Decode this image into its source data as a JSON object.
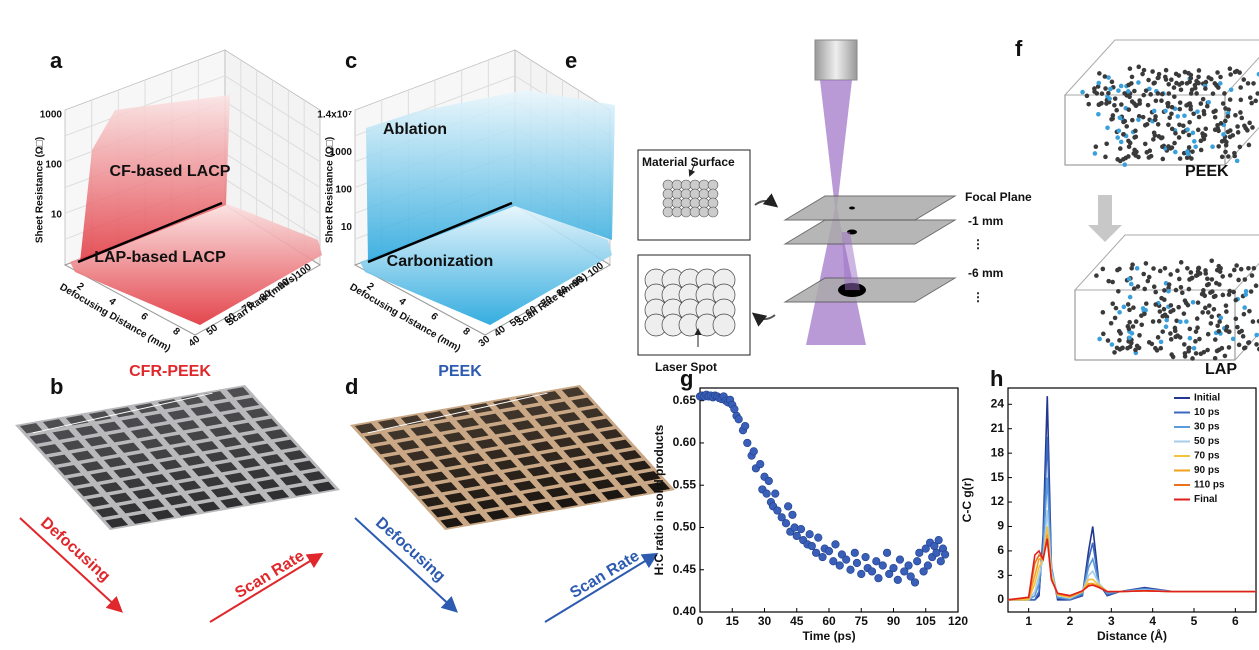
{
  "panel_labels": [
    "a",
    "b",
    "c",
    "d",
    "e",
    "f",
    "g",
    "h"
  ],
  "panel_a": {
    "z_label": "Sheet Resistance (Ω□)",
    "z_ticks": [
      "1000",
      "100",
      "10"
    ],
    "annotations": [
      "CF-based LACP",
      "LAP-based LACP"
    ],
    "x_label": "Defocusing Distance (mm)",
    "x_ticks": [
      "2",
      "4",
      "6",
      "8"
    ],
    "y_label": "Scan Rate (mm/s)",
    "y_ticks": [
      "40",
      "50",
      "60",
      "70",
      "80",
      "90",
      "100"
    ],
    "material": "CFR-PEEK"
  },
  "panel_b": {
    "arrows": [
      "Defocusing",
      "Scan Rate"
    ]
  },
  "panel_c": {
    "z_label": "Sheet Resistance (Ω□)",
    "z_ticks": [
      "1.4x10⁷",
      "1000",
      "100",
      "10"
    ],
    "annotations": [
      "Ablation",
      "Carbonization"
    ],
    "x_label": "Defocusing Distance (mm)",
    "x_ticks": [
      "2",
      "4",
      "6",
      "8"
    ],
    "y_label": "Scan Rate (mm/s)",
    "y_ticks": [
      "30",
      "40",
      "50",
      "60",
      "70",
      "80",
      "90",
      "100"
    ],
    "material": "PEEK"
  },
  "panel_d": {
    "arrows": [
      "Defocusing",
      "Scan Rate"
    ]
  },
  "panel_e": {
    "material_surface": "Material Surface",
    "laser_spot": "Laser Spot",
    "focal_plane": "Focal Plane",
    "planes": [
      "-1 mm",
      "⋮",
      "-6 mm",
      "⋮"
    ]
  },
  "panel_f": {
    "top": "PEEK",
    "bottom": "LAP"
  },
  "chart_data": [
    {
      "type": "scatter",
      "x_label": "Time (ps)",
      "y_label": "H:C ratio in solid products",
      "color": "#3a5fb8",
      "x": [
        0,
        1,
        2,
        3,
        4,
        5,
        6,
        7,
        8,
        9,
        10,
        11,
        12,
        13,
        14,
        15,
        16,
        17,
        18,
        20,
        21,
        22,
        24,
        25,
        26,
        28,
        29,
        30,
        31,
        32,
        33,
        34,
        35,
        36,
        38,
        40,
        41,
        42,
        43,
        44,
        45,
        47,
        48,
        50,
        51,
        52,
        54,
        55,
        57,
        58,
        60,
        62,
        63,
        65,
        66,
        68,
        70,
        72,
        73,
        75,
        77,
        78,
        80,
        82,
        83,
        85,
        87,
        88,
        90,
        92,
        93,
        95,
        97,
        98,
        100,
        101,
        102,
        104,
        105,
        106,
        107,
        108,
        109,
        110,
        111,
        112,
        113,
        114
      ],
      "values": [
        0.655,
        0.656,
        0.655,
        0.657,
        0.655,
        0.656,
        0.654,
        0.656,
        0.655,
        0.653,
        0.652,
        0.655,
        0.65,
        0.648,
        0.651,
        0.645,
        0.64,
        0.632,
        0.628,
        0.615,
        0.62,
        0.6,
        0.585,
        0.59,
        0.57,
        0.575,
        0.545,
        0.56,
        0.54,
        0.555,
        0.53,
        0.525,
        0.54,
        0.52,
        0.512,
        0.505,
        0.525,
        0.495,
        0.515,
        0.5,
        0.49,
        0.498,
        0.485,
        0.48,
        0.492,
        0.478,
        0.47,
        0.488,
        0.465,
        0.475,
        0.472,
        0.46,
        0.48,
        0.455,
        0.468,
        0.462,
        0.45,
        0.47,
        0.458,
        0.445,
        0.465,
        0.452,
        0.448,
        0.46,
        0.44,
        0.455,
        0.47,
        0.445,
        0.452,
        0.438,
        0.462,
        0.448,
        0.455,
        0.442,
        0.435,
        0.46,
        0.47,
        0.448,
        0.475,
        0.455,
        0.482,
        0.465,
        0.478,
        0.47,
        0.485,
        0.46,
        0.475,
        0.468
      ],
      "xlim": [
        0,
        120
      ],
      "xticks": [
        0,
        15,
        30,
        45,
        60,
        75,
        90,
        105,
        120
      ],
      "ylim": [
        0.4,
        0.665
      ],
      "yticks": [
        {
          "value": 0.4,
          "label": "0.40"
        },
        0.45,
        {
          "value": 0.5,
          "label": "0.50"
        },
        0.55,
        {
          "value": 0.6,
          "label": "0.60"
        },
        0.65
      ]
    },
    {
      "type": "line",
      "x_label": "Distance (Å)",
      "y_label": "C-C g(r)",
      "x": [
        0.5,
        1.0,
        1.15,
        1.25,
        1.35,
        1.45,
        1.55,
        1.7,
        2.0,
        2.3,
        2.45,
        2.55,
        2.7,
        2.9,
        3.2,
        3.8,
        4.5,
        5.5,
        6.5
      ],
      "series": [
        {
          "name": "Initial",
          "color": "#23378f",
          "values": [
            0,
            0,
            0,
            0.5,
            8,
            25,
            4,
            0,
            0,
            0.5,
            6,
            9,
            2,
            0.5,
            1,
            1.5,
            1,
            1,
            1
          ]
        },
        {
          "name": "10 ps",
          "color": "#3b68c0",
          "values": [
            0,
            0,
            0,
            1,
            7,
            20,
            4,
            0.2,
            0,
            0.6,
            5,
            7,
            2,
            0.6,
            1,
            1.4,
            1,
            1,
            1
          ]
        },
        {
          "name": "30 ps",
          "color": "#5b9bd8",
          "values": [
            0,
            0,
            0.5,
            2,
            6,
            15,
            4,
            0.3,
            0.1,
            0.8,
            4,
            5,
            2,
            0.8,
            1,
            1.3,
            1,
            1,
            1
          ]
        },
        {
          "name": "50 ps",
          "color": "#a9cbea",
          "values": [
            0,
            0,
            1,
            3,
            5,
            11,
            3.5,
            0.5,
            0.2,
            1,
            3,
            3.5,
            2,
            1,
            1,
            1.2,
            1,
            1,
            1
          ]
        },
        {
          "name": "70 ps",
          "color": "#f3c23e",
          "values": [
            0,
            0,
            2,
            4,
            5,
            9,
            3,
            0.6,
            0.3,
            1,
            2.5,
            2.5,
            1.8,
            1,
            1,
            1.1,
            1,
            1,
            1
          ]
        },
        {
          "name": "90 ps",
          "color": "#f0a21e",
          "values": [
            0,
            0.2,
            3,
            5,
            5,
            8,
            2.5,
            0.7,
            0.4,
            1,
            2,
            2,
            1.7,
            1,
            1,
            1.1,
            1,
            1,
            1
          ]
        },
        {
          "name": "110 ps",
          "color": "#e8721e",
          "values": [
            0,
            0.3,
            4.5,
            5.5,
            5,
            7.5,
            2.5,
            0.8,
            0.5,
            1.1,
            1.8,
            1.8,
            1.6,
            1,
            1,
            1.1,
            1,
            1,
            1
          ]
        },
        {
          "name": "Final",
          "color": "#e0201e",
          "values": [
            0,
            0.3,
            5.5,
            6,
            5,
            7.5,
            2.5,
            0.8,
            0.5,
            1.1,
            1.7,
            1.8,
            1.5,
            1,
            1,
            1.1,
            1,
            1,
            1
          ]
        }
      ],
      "xlim": [
        0.5,
        6.5
      ],
      "xticks": [
        1,
        2,
        3,
        4,
        5,
        6
      ],
      "ylim": [
        -1.5,
        26
      ],
      "yticks": [
        0,
        3,
        6,
        9,
        12,
        15,
        18,
        21,
        24
      ]
    }
  ]
}
